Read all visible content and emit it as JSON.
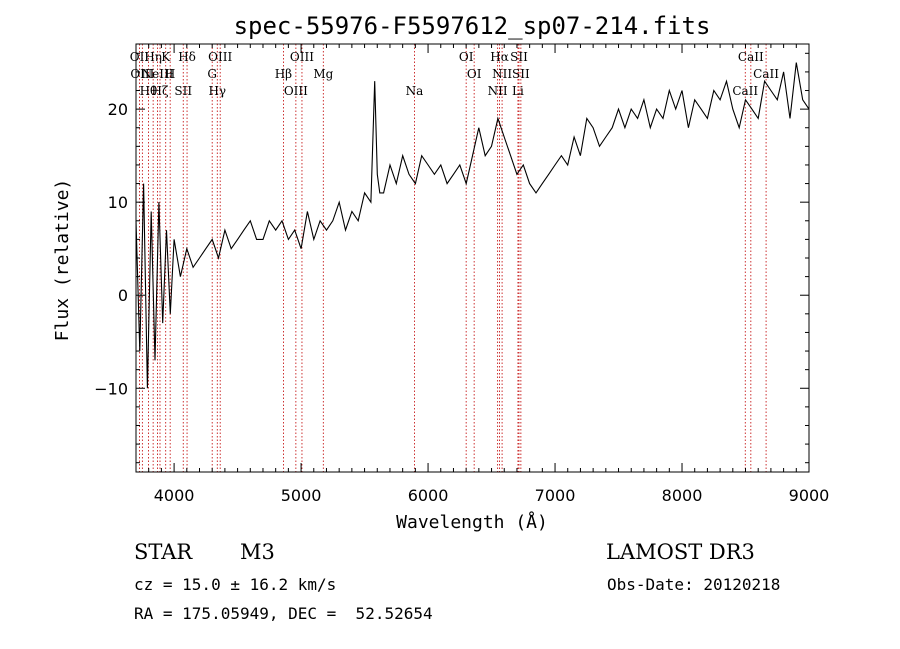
{
  "chart_data": {
    "type": "line",
    "title": "spec-55976-F5597612_sp07-214.fits",
    "xlabel": "Wavelength (Å)",
    "ylabel": "Flux (relative)",
    "xlim": [
      3700,
      9000
    ],
    "ylim": [
      -19,
      27
    ],
    "xticks": [
      4000,
      5000,
      6000,
      7000,
      8000,
      9000
    ],
    "yticks": [
      -10,
      0,
      10,
      20
    ],
    "series": [
      {
        "name": "flux",
        "x": [
          3700,
          3730,
          3760,
          3790,
          3820,
          3850,
          3880,
          3910,
          3940,
          3970,
          4000,
          4050,
          4100,
          4150,
          4200,
          4250,
          4300,
          4350,
          4400,
          4450,
          4500,
          4550,
          4600,
          4650,
          4700,
          4750,
          4800,
          4850,
          4900,
          4950,
          5000,
          5050,
          5100,
          5150,
          5200,
          5250,
          5300,
          5350,
          5400,
          5450,
          5500,
          5550,
          5580,
          5600,
          5620,
          5650,
          5700,
          5750,
          5800,
          5850,
          5900,
          5950,
          6000,
          6050,
          6100,
          6150,
          6200,
          6250,
          6300,
          6350,
          6400,
          6450,
          6500,
          6550,
          6600,
          6650,
          6700,
          6750,
          6800,
          6850,
          6900,
          6950,
          7000,
          7050,
          7100,
          7150,
          7200,
          7250,
          7300,
          7350,
          7400,
          7450,
          7500,
          7550,
          7600,
          7650,
          7700,
          7750,
          7800,
          7850,
          7900,
          7950,
          8000,
          8050,
          8100,
          8150,
          8200,
          8250,
          8300,
          8350,
          8400,
          8450,
          8500,
          8550,
          8600,
          8650,
          8700,
          8750,
          8800,
          8850,
          8900,
          8950,
          9000
        ],
        "values": [
          8,
          -6,
          12,
          -10,
          9,
          -7,
          10,
          -3,
          7,
          -2,
          6,
          2,
          5,
          3,
          4,
          5,
          6,
          4,
          7,
          5,
          6,
          7,
          8,
          6,
          6,
          8,
          7,
          8,
          6,
          7,
          5,
          9,
          6,
          8,
          7,
          8,
          10,
          7,
          9,
          8,
          11,
          10,
          23,
          13,
          11,
          11,
          14,
          12,
          15,
          13,
          12,
          15,
          14,
          13,
          14,
          12,
          13,
          14,
          12,
          15,
          18,
          15,
          16,
          19,
          17,
          15,
          13,
          14,
          12,
          11,
          12,
          13,
          14,
          15,
          14,
          17,
          15,
          19,
          18,
          16,
          17,
          18,
          20,
          18,
          20,
          19,
          21,
          18,
          20,
          19,
          22,
          20,
          22,
          18,
          21,
          20,
          19,
          22,
          21,
          23,
          20,
          18,
          21,
          20,
          19,
          23,
          22,
          21,
          24,
          19,
          25,
          21,
          20
        ]
      }
    ],
    "line_markers": [
      {
        "wavelength": 3727,
        "label": "OII"
      },
      {
        "wavelength": 3750,
        "label": "OIII"
      },
      {
        "wavelength": 3798,
        "label": "Hθ"
      },
      {
        "wavelength": 3835,
        "label": "Hη"
      },
      {
        "wavelength": 3870,
        "label": "NeIII"
      },
      {
        "wavelength": 3889,
        "label": "Hζ"
      },
      {
        "wavelength": 3934,
        "label": "K"
      },
      {
        "wavelength": 3969,
        "label": "H"
      },
      {
        "wavelength": 4072,
        "label": "SII"
      },
      {
        "wavelength": 4102,
        "label": "Hδ"
      },
      {
        "wavelength": 4300,
        "label": "G"
      },
      {
        "wavelength": 4340,
        "label": "Hγ"
      },
      {
        "wavelength": 4363,
        "label": "OIII"
      },
      {
        "wavelength": 4861,
        "label": "Hβ"
      },
      {
        "wavelength": 4959,
        "label": "OIII"
      },
      {
        "wavelength": 5007,
        "label": "OIII"
      },
      {
        "wavelength": 5175,
        "label": "Mg"
      },
      {
        "wavelength": 5893,
        "label": "Na"
      },
      {
        "wavelength": 6300,
        "label": "OI"
      },
      {
        "wavelength": 6363,
        "label": "OI"
      },
      {
        "wavelength": 6548,
        "label": "NII"
      },
      {
        "wavelength": 6563,
        "label": "Hα"
      },
      {
        "wavelength": 6583,
        "label": "NII"
      },
      {
        "wavelength": 6708,
        "label": "Li"
      },
      {
        "wavelength": 6716,
        "label": "SII"
      },
      {
        "wavelength": 6731,
        "label": "SII"
      },
      {
        "wavelength": 8498,
        "label": "CaII"
      },
      {
        "wavelength": 8542,
        "label": "CaII"
      },
      {
        "wavelength": 8662,
        "label": "CaII"
      }
    ]
  },
  "info": {
    "object_class": "STAR",
    "subclass": "M3",
    "survey": "LAMOST DR3",
    "cz": "cz = 15.0 ± 16.2 km/s",
    "obs_date": "Obs-Date: 20120218",
    "coords": "RA = 175.05949, DEC =  52.52654"
  },
  "colors": {
    "spectrum": "#000000",
    "line_marker": "#c00000",
    "background": "#ffffff"
  }
}
